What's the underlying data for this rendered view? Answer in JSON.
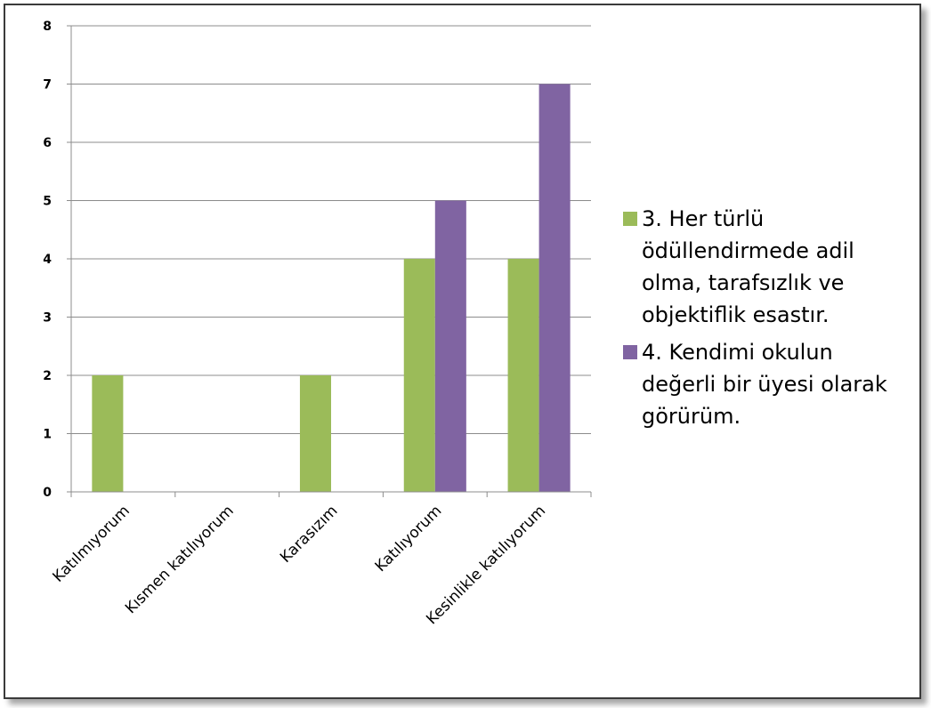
{
  "chart_data": {
    "type": "bar",
    "title": "",
    "xlabel": "",
    "ylabel": "",
    "categories": [
      "Katılmıyorum",
      "Kısmen katılıyorum",
      "Karasızım",
      "Katılıyorum",
      "Kesinlikle katılıyorum"
    ],
    "series": [
      {
        "name": "3. Her türlü ödüllendirmede adil olma, tarafsızlık ve objektiflik esastır.",
        "color": "#9bbb59",
        "values": [
          2,
          0,
          2,
          4,
          4
        ]
      },
      {
        "name": "4. Kendimi okulun değerli bir üyesi olarak görürüm.",
        "color": "#8064a2",
        "values": [
          0,
          0,
          0,
          5,
          7
        ]
      }
    ],
    "ylim": [
      0,
      8
    ],
    "yticks": [
      0,
      1,
      2,
      3,
      4,
      5,
      6,
      7,
      8
    ],
    "grid": true,
    "legend_position": "right"
  }
}
